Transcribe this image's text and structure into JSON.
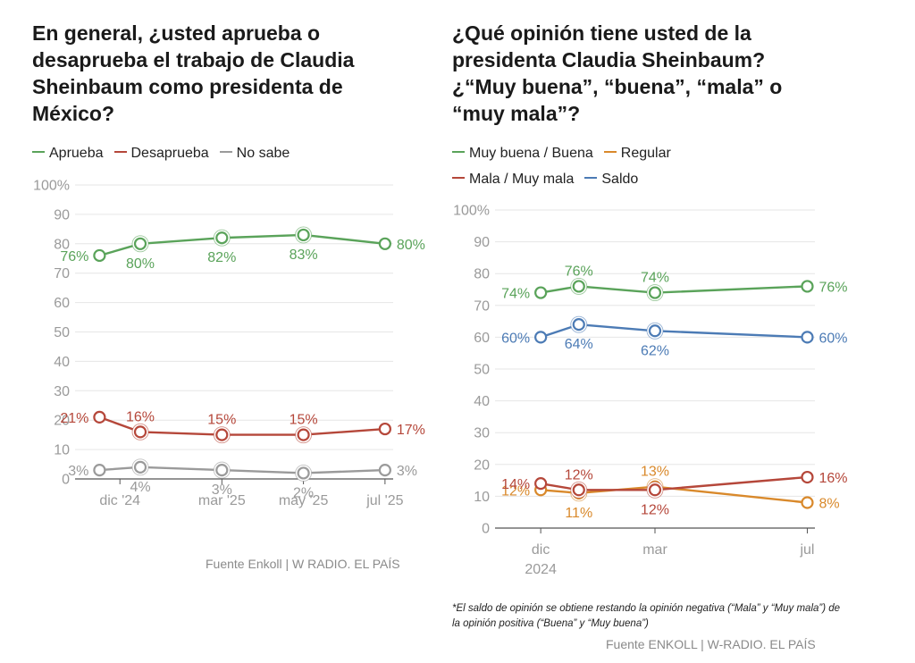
{
  "colors": {
    "approve": "#5aa35a",
    "disapprove": "#b5473a",
    "unknown": "#9a9a9a",
    "regular": "#d9892b",
    "balance": "#4c7bb5",
    "grid": "#e6e6e6",
    "axis_text": "#9a9a9a"
  },
  "chart_data": [
    {
      "type": "line",
      "title": "En general, ¿usted aprueba o desaprueba el trabajo de Claudia Sheinbaum como presidenta de México?",
      "legend": [
        "Aprueba",
        "Desaprueba",
        "No sabe"
      ],
      "legend_placement": "top",
      "ylim": [
        0,
        100
      ],
      "y_ticks": [
        "0",
        "10",
        "20",
        "30",
        "40",
        "50",
        "60",
        "70",
        "80",
        "90",
        "100%"
      ],
      "x_ticks": [
        {
          "label": "dic '24",
          "x": 0.5
        },
        {
          "label": "mar '25",
          "x": 3
        },
        {
          "label": "may '25",
          "x": 5
        },
        {
          "label": "jul '25",
          "x": 7
        }
      ],
      "xlim": [
        -0.6,
        7.2
      ],
      "x": [
        0,
        1,
        3,
        5,
        7
      ],
      "series": [
        {
          "name": "Aprueba",
          "color_key": "approve",
          "values": [
            76,
            80,
            82,
            83,
            80
          ],
          "labels": [
            "76%",
            "80%",
            "82%",
            "83%",
            "80%"
          ],
          "label_pos": [
            "left",
            "below",
            "below",
            "below",
            "right"
          ]
        },
        {
          "name": "Desaprueba",
          "color_key": "disapprove",
          "values": [
            21,
            16,
            15,
            15,
            17
          ],
          "labels": [
            "21%",
            "16%",
            "15%",
            "15%",
            "17%"
          ],
          "label_pos": [
            "left",
            "above",
            "above",
            "above",
            "right"
          ]
        },
        {
          "name": "No sabe",
          "color_key": "unknown",
          "values": [
            3,
            4,
            3,
            2,
            3
          ],
          "labels": [
            "3%",
            "4%",
            "3%",
            "2%",
            "3%"
          ],
          "label_pos": [
            "left",
            "below",
            "below",
            "below",
            "right"
          ]
        }
      ],
      "source": "Fuente Enkoll | W RADIO. EL PAÍS"
    },
    {
      "type": "line",
      "title": "¿Qué opinión tiene usted de la presidenta Claudia Sheinbaum? ¿“Muy buena”, “buena”, “mala” o “muy mala”?",
      "legend": [
        "Muy buena / Buena",
        "Regular",
        "Mala / Muy mala",
        "Saldo"
      ],
      "legend_placement": "top",
      "ylim": [
        0,
        100
      ],
      "y_ticks": [
        "0",
        "10",
        "20",
        "30",
        "40",
        "50",
        "60",
        "70",
        "80",
        "90",
        "100%"
      ],
      "x_ticks": [
        {
          "label": "dic",
          "sublabel": "2024",
          "x": 0
        },
        {
          "label": "mar",
          "x": 3
        },
        {
          "label": "jul",
          "x": 7
        }
      ],
      "xlim": [
        -1.2,
        7.2
      ],
      "x": [
        0,
        1,
        3,
        7
      ],
      "series": [
        {
          "name": "Muy buena / Buena",
          "color_key": "approve",
          "values": [
            74,
            76,
            74,
            76
          ],
          "labels": [
            "74%",
            "76%",
            "74%",
            "76%"
          ],
          "label_pos": [
            "left",
            "above",
            "above",
            "right"
          ]
        },
        {
          "name": "Saldo",
          "color_key": "balance",
          "values": [
            60,
            64,
            62,
            60
          ],
          "labels": [
            "60%",
            "64%",
            "62%",
            "60%"
          ],
          "label_pos": [
            "left",
            "below",
            "below",
            "right"
          ]
        },
        {
          "name": "Regular",
          "color_key": "regular",
          "values": [
            12,
            11,
            13,
            8
          ],
          "labels": [
            "12%",
            "11%",
            "13%",
            "8%"
          ],
          "label_pos": [
            "left",
            "below",
            "above",
            "right"
          ]
        },
        {
          "name": "Mala / Muy mala",
          "color_key": "disapprove",
          "values": [
            14,
            12,
            12,
            16
          ],
          "labels": [
            "14%",
            "12%",
            "12%",
            "16%"
          ],
          "label_pos": [
            "left",
            "above",
            "below",
            "right"
          ]
        }
      ],
      "note": "*El saldo de opinión se obtiene restando la opinión negativa (“Mala” y “Muy mala”) de la opinión positiva (“Buena” y “Muy buena”)",
      "source": "Fuente ENKOLL | W-RADIO. EL PAÍS"
    }
  ]
}
